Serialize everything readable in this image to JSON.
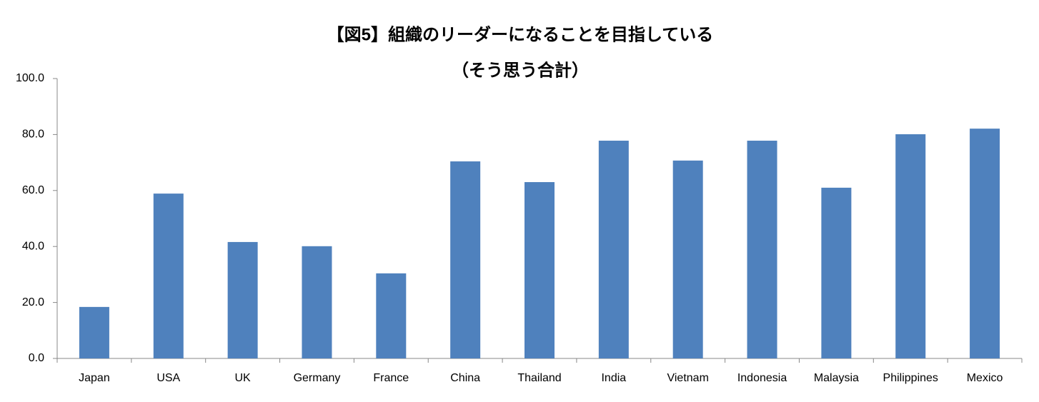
{
  "chart_data": {
    "type": "bar",
    "title": "【図5】組織のリーダーになることを目指している",
    "subtitle": "（そう思う合計）",
    "categories": [
      "Japan",
      "USA",
      "UK",
      "Germany",
      "France",
      "China",
      "Thailand",
      "India",
      "Vietnam",
      "Indonesia",
      "Malaysia",
      "Philippines",
      "Mexico"
    ],
    "values": [
      18.4,
      58.9,
      41.6,
      40.1,
      30.4,
      70.4,
      63.0,
      77.8,
      70.7,
      77.8,
      61.0,
      80.1,
      82.1
    ],
    "color": "#4f81bd",
    "ylim": [
      0,
      100
    ],
    "yticks": [
      {
        "value": 0,
        "label": "0.0"
      },
      {
        "value": 20,
        "label": "20.0"
      },
      {
        "value": 40,
        "label": "40.0"
      },
      {
        "value": 60,
        "label": "60.0"
      },
      {
        "value": 80,
        "label": "80.0"
      },
      {
        "value": 100,
        "label": "100.0"
      }
    ],
    "grid": false
  }
}
